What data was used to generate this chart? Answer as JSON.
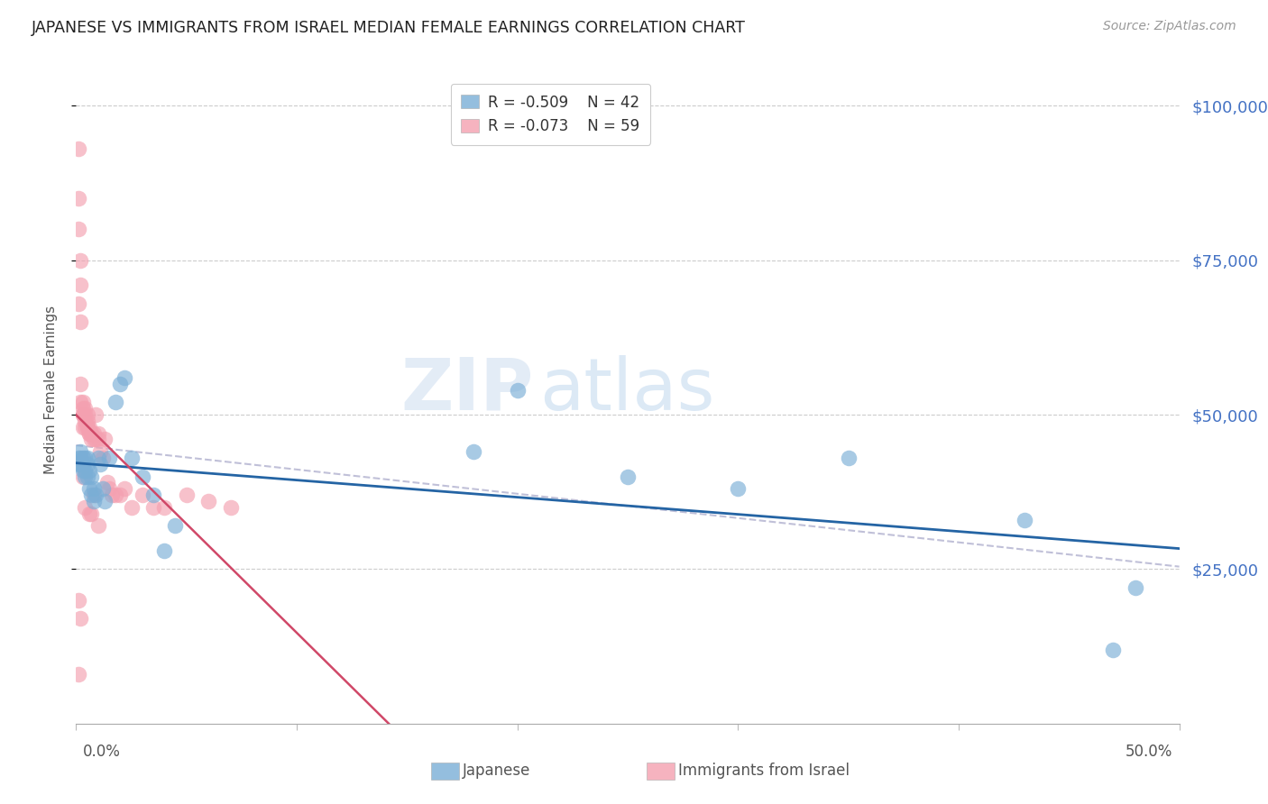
{
  "title": "JAPANESE VS IMMIGRANTS FROM ISRAEL MEDIAN FEMALE EARNINGS CORRELATION CHART",
  "source": "Source: ZipAtlas.com",
  "ylabel": "Median Female Earnings",
  "ytick_labels": [
    "$25,000",
    "$50,000",
    "$75,000",
    "$100,000"
  ],
  "ytick_values": [
    25000,
    50000,
    75000,
    100000
  ],
  "ylim": [
    0,
    108000
  ],
  "xlim": [
    0.0,
    0.5
  ],
  "japanese_R": "-0.509",
  "japanese_N": "42",
  "israel_R": "-0.073",
  "israel_N": "59",
  "japanese_color": "#7aaed6",
  "israel_color": "#f4a0b0",
  "japanese_line_color": "#2464a4",
  "israel_line_color": "#d04868",
  "dash_color": "#c0c0d8",
  "japanese_x": [
    0.001,
    0.001,
    0.002,
    0.002,
    0.002,
    0.003,
    0.003,
    0.003,
    0.004,
    0.004,
    0.004,
    0.005,
    0.005,
    0.005,
    0.006,
    0.006,
    0.007,
    0.007,
    0.008,
    0.008,
    0.009,
    0.01,
    0.011,
    0.012,
    0.013,
    0.015,
    0.018,
    0.02,
    0.022,
    0.025,
    0.03,
    0.035,
    0.04,
    0.045,
    0.18,
    0.2,
    0.25,
    0.3,
    0.35,
    0.43,
    0.47,
    0.48
  ],
  "japanese_y": [
    43000,
    42000,
    44000,
    43000,
    42000,
    43000,
    41000,
    42000,
    43000,
    41000,
    40000,
    43000,
    42000,
    40000,
    41000,
    38000,
    40000,
    37000,
    38000,
    36000,
    37000,
    43000,
    42000,
    38000,
    36000,
    43000,
    52000,
    55000,
    56000,
    43000,
    40000,
    37000,
    28000,
    32000,
    44000,
    54000,
    40000,
    38000,
    43000,
    33000,
    12000,
    22000
  ],
  "israel_x": [
    0.001,
    0.001,
    0.001,
    0.001,
    0.002,
    0.002,
    0.002,
    0.002,
    0.002,
    0.003,
    0.003,
    0.003,
    0.003,
    0.003,
    0.004,
    0.004,
    0.004,
    0.004,
    0.005,
    0.005,
    0.005,
    0.005,
    0.006,
    0.006,
    0.006,
    0.007,
    0.007,
    0.007,
    0.008,
    0.008,
    0.009,
    0.009,
    0.01,
    0.01,
    0.011,
    0.012,
    0.013,
    0.014,
    0.015,
    0.016,
    0.018,
    0.02,
    0.022,
    0.025,
    0.03,
    0.035,
    0.04,
    0.05,
    0.06,
    0.07,
    0.001,
    0.002,
    0.001,
    0.003,
    0.004,
    0.006,
    0.007,
    0.008,
    0.01
  ],
  "israel_y": [
    93000,
    85000,
    80000,
    68000,
    75000,
    71000,
    65000,
    55000,
    52000,
    52000,
    51000,
    50000,
    50000,
    48000,
    51000,
    50000,
    49000,
    48000,
    50000,
    49000,
    48000,
    48000,
    48000,
    47000,
    47000,
    47000,
    47000,
    46000,
    47000,
    46000,
    50000,
    46000,
    47000,
    46000,
    44000,
    43000,
    46000,
    39000,
    38000,
    37000,
    37000,
    37000,
    38000,
    35000,
    37000,
    35000,
    35000,
    37000,
    36000,
    35000,
    20000,
    17000,
    8000,
    40000,
    35000,
    34000,
    34000,
    37000,
    32000
  ]
}
